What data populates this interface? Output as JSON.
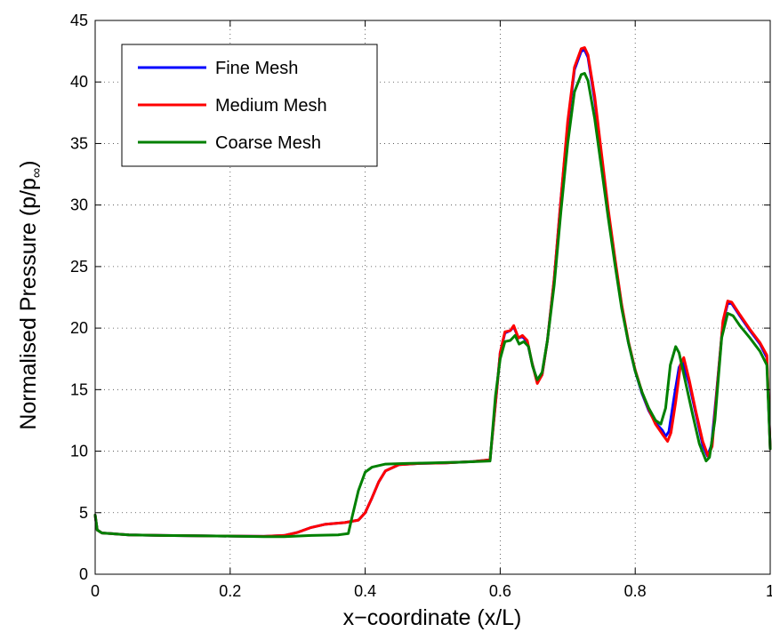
{
  "chart_data": {
    "type": "line",
    "title": "",
    "xlabel": "x−coordinate (x/L)",
    "ylabel_main": "Normalised Pressure (p/p",
    "ylabel_sub": "∞",
    "ylabel_close": ")",
    "xlim": [
      0,
      1
    ],
    "ylim": [
      0,
      45
    ],
    "xticks": [
      0,
      0.2,
      0.4,
      0.6,
      0.8,
      1
    ],
    "xtick_labels": [
      "0",
      "0.2",
      "0.4",
      "0.6",
      "0.8",
      "1"
    ],
    "yticks": [
      0,
      5,
      10,
      15,
      20,
      25,
      30,
      35,
      40,
      45
    ],
    "ytick_labels": [
      "0",
      "5",
      "10",
      "15",
      "20",
      "25",
      "30",
      "35",
      "40",
      "45"
    ],
    "grid": true,
    "legend_position": "top-left",
    "series": [
      {
        "name": "Fine Mesh",
        "color": "#0000ff",
        "points": [
          [
            0,
            4.8
          ],
          [
            0.003,
            3.6
          ],
          [
            0.01,
            3.35
          ],
          [
            0.05,
            3.2
          ],
          [
            0.1,
            3.15
          ],
          [
            0.15,
            3.12
          ],
          [
            0.2,
            3.1
          ],
          [
            0.25,
            3.08
          ],
          [
            0.28,
            3.15
          ],
          [
            0.3,
            3.4
          ],
          [
            0.32,
            3.8
          ],
          [
            0.34,
            4.05
          ],
          [
            0.37,
            4.2
          ],
          [
            0.39,
            4.4
          ],
          [
            0.4,
            5.0
          ],
          [
            0.41,
            6.2
          ],
          [
            0.42,
            7.5
          ],
          [
            0.43,
            8.4
          ],
          [
            0.45,
            8.9
          ],
          [
            0.48,
            9.0
          ],
          [
            0.52,
            9.05
          ],
          [
            0.56,
            9.15
          ],
          [
            0.585,
            9.3
          ],
          [
            0.595,
            15.0
          ],
          [
            0.6,
            18.0
          ],
          [
            0.607,
            19.6
          ],
          [
            0.615,
            19.8
          ],
          [
            0.62,
            20.1
          ],
          [
            0.627,
            19.2
          ],
          [
            0.633,
            19.3
          ],
          [
            0.64,
            18.9
          ],
          [
            0.647,
            17.2
          ],
          [
            0.655,
            15.6
          ],
          [
            0.662,
            16.2
          ],
          [
            0.67,
            19.0
          ],
          [
            0.68,
            24.0
          ],
          [
            0.69,
            30.5
          ],
          [
            0.7,
            36.5
          ],
          [
            0.71,
            41.0
          ],
          [
            0.72,
            42.5
          ],
          [
            0.725,
            42.6
          ],
          [
            0.73,
            42.0
          ],
          [
            0.74,
            38.5
          ],
          [
            0.75,
            34.0
          ],
          [
            0.76,
            29.5
          ],
          [
            0.77,
            25.5
          ],
          [
            0.78,
            21.8
          ],
          [
            0.79,
            18.8
          ],
          [
            0.8,
            16.5
          ],
          [
            0.81,
            14.7
          ],
          [
            0.82,
            13.3
          ],
          [
            0.83,
            12.3
          ],
          [
            0.84,
            11.7
          ],
          [
            0.845,
            11.2
          ],
          [
            0.85,
            11.6
          ],
          [
            0.858,
            14.5
          ],
          [
            0.865,
            16.8
          ],
          [
            0.87,
            17.3
          ],
          [
            0.88,
            15.5
          ],
          [
            0.89,
            13.0
          ],
          [
            0.9,
            10.5
          ],
          [
            0.907,
            9.6
          ],
          [
            0.913,
            10.5
          ],
          [
            0.92,
            14.5
          ],
          [
            0.93,
            20.5
          ],
          [
            0.937,
            22.0
          ],
          [
            0.943,
            22.0
          ],
          [
            0.955,
            21.0
          ],
          [
            0.97,
            19.8
          ],
          [
            0.985,
            18.7
          ],
          [
            0.995,
            17.6
          ],
          [
            1.0,
            10.2
          ]
        ]
      },
      {
        "name": "Medium Mesh",
        "color": "#ff0000",
        "points": [
          [
            0,
            4.8
          ],
          [
            0.003,
            3.6
          ],
          [
            0.01,
            3.35
          ],
          [
            0.05,
            3.2
          ],
          [
            0.1,
            3.15
          ],
          [
            0.15,
            3.12
          ],
          [
            0.2,
            3.1
          ],
          [
            0.25,
            3.08
          ],
          [
            0.28,
            3.15
          ],
          [
            0.3,
            3.4
          ],
          [
            0.32,
            3.8
          ],
          [
            0.34,
            4.05
          ],
          [
            0.37,
            4.2
          ],
          [
            0.39,
            4.4
          ],
          [
            0.4,
            5.0
          ],
          [
            0.41,
            6.2
          ],
          [
            0.42,
            7.5
          ],
          [
            0.43,
            8.4
          ],
          [
            0.45,
            8.9
          ],
          [
            0.48,
            9.0
          ],
          [
            0.52,
            9.05
          ],
          [
            0.56,
            9.15
          ],
          [
            0.585,
            9.3
          ],
          [
            0.595,
            15.0
          ],
          [
            0.6,
            18.0
          ],
          [
            0.607,
            19.7
          ],
          [
            0.615,
            19.8
          ],
          [
            0.62,
            20.2
          ],
          [
            0.627,
            19.2
          ],
          [
            0.633,
            19.4
          ],
          [
            0.64,
            19.0
          ],
          [
            0.647,
            17.2
          ],
          [
            0.655,
            15.5
          ],
          [
            0.662,
            16.2
          ],
          [
            0.67,
            19.0
          ],
          [
            0.68,
            24.0
          ],
          [
            0.69,
            30.5
          ],
          [
            0.7,
            36.8
          ],
          [
            0.71,
            41.2
          ],
          [
            0.72,
            42.7
          ],
          [
            0.725,
            42.8
          ],
          [
            0.73,
            42.2
          ],
          [
            0.74,
            38.8
          ],
          [
            0.75,
            34.2
          ],
          [
            0.76,
            29.7
          ],
          [
            0.77,
            25.7
          ],
          [
            0.78,
            21.9
          ],
          [
            0.79,
            18.9
          ],
          [
            0.8,
            16.6
          ],
          [
            0.81,
            14.8
          ],
          [
            0.82,
            13.4
          ],
          [
            0.83,
            12.2
          ],
          [
            0.84,
            11.4
          ],
          [
            0.848,
            10.8
          ],
          [
            0.853,
            11.5
          ],
          [
            0.86,
            14.0
          ],
          [
            0.867,
            17.0
          ],
          [
            0.872,
            17.6
          ],
          [
            0.88,
            15.8
          ],
          [
            0.89,
            13.2
          ],
          [
            0.9,
            10.8
          ],
          [
            0.908,
            9.6
          ],
          [
            0.914,
            10.4
          ],
          [
            0.92,
            14.3
          ],
          [
            0.93,
            20.6
          ],
          [
            0.937,
            22.2
          ],
          [
            0.943,
            22.1
          ],
          [
            0.955,
            21.1
          ],
          [
            0.97,
            19.9
          ],
          [
            0.985,
            18.8
          ],
          [
            0.995,
            17.8
          ],
          [
            1.0,
            10.2
          ]
        ]
      },
      {
        "name": "Coarse Mesh",
        "color": "#008000",
        "points": [
          [
            0,
            4.8
          ],
          [
            0.003,
            3.6
          ],
          [
            0.01,
            3.35
          ],
          [
            0.05,
            3.2
          ],
          [
            0.1,
            3.15
          ],
          [
            0.15,
            3.12
          ],
          [
            0.2,
            3.1
          ],
          [
            0.25,
            3.05
          ],
          [
            0.28,
            3.05
          ],
          [
            0.32,
            3.15
          ],
          [
            0.36,
            3.2
          ],
          [
            0.375,
            3.3
          ],
          [
            0.38,
            4.5
          ],
          [
            0.39,
            6.8
          ],
          [
            0.4,
            8.3
          ],
          [
            0.41,
            8.7
          ],
          [
            0.43,
            8.95
          ],
          [
            0.46,
            9.0
          ],
          [
            0.5,
            9.05
          ],
          [
            0.54,
            9.1
          ],
          [
            0.585,
            9.2
          ],
          [
            0.593,
            14.5
          ],
          [
            0.6,
            17.5
          ],
          [
            0.607,
            18.9
          ],
          [
            0.615,
            19.0
          ],
          [
            0.622,
            19.4
          ],
          [
            0.628,
            18.7
          ],
          [
            0.635,
            18.9
          ],
          [
            0.642,
            18.5
          ],
          [
            0.648,
            16.9
          ],
          [
            0.655,
            15.8
          ],
          [
            0.662,
            16.4
          ],
          [
            0.67,
            19.0
          ],
          [
            0.68,
            23.5
          ],
          [
            0.69,
            29.5
          ],
          [
            0.7,
            35.0
          ],
          [
            0.71,
            39.2
          ],
          [
            0.72,
            40.6
          ],
          [
            0.725,
            40.7
          ],
          [
            0.73,
            40.1
          ],
          [
            0.74,
            37.0
          ],
          [
            0.75,
            33.0
          ],
          [
            0.76,
            29.0
          ],
          [
            0.77,
            25.2
          ],
          [
            0.78,
            21.6
          ],
          [
            0.79,
            18.8
          ],
          [
            0.8,
            16.5
          ],
          [
            0.81,
            14.8
          ],
          [
            0.82,
            13.5
          ],
          [
            0.83,
            12.5
          ],
          [
            0.838,
            12.2
          ],
          [
            0.845,
            13.5
          ],
          [
            0.852,
            17.0
          ],
          [
            0.86,
            18.5
          ],
          [
            0.865,
            18.0
          ],
          [
            0.875,
            15.5
          ],
          [
            0.885,
            13.0
          ],
          [
            0.895,
            10.6
          ],
          [
            0.905,
            9.2
          ],
          [
            0.91,
            9.5
          ],
          [
            0.918,
            12.5
          ],
          [
            0.928,
            19.2
          ],
          [
            0.937,
            21.2
          ],
          [
            0.945,
            21.0
          ],
          [
            0.955,
            20.2
          ],
          [
            0.97,
            19.2
          ],
          [
            0.985,
            18.1
          ],
          [
            0.995,
            17.0
          ],
          [
            1.0,
            10.2
          ]
        ]
      }
    ]
  }
}
